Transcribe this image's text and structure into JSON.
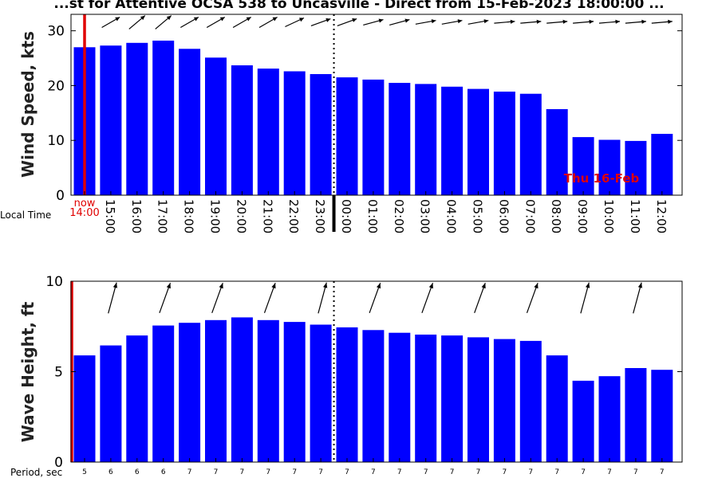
{
  "chart_data": [
    {
      "type": "bar",
      "title": "...st for Attentive OCSA 538 to Uncasville - Direct from 15-Feb-2023 18:00:00 ...",
      "ylabel": "Wind Speed, kts",
      "xlabel": "Local Time",
      "ylim": [
        0,
        33
      ],
      "yticks": [
        0,
        10,
        20,
        30
      ],
      "categories": [
        "14:00",
        "15:00",
        "16:00",
        "17:00",
        "18:00",
        "19:00",
        "20:00",
        "21:00",
        "22:00",
        "23:00",
        "00:00",
        "01:00",
        "02:00",
        "03:00",
        "04:00",
        "05:00",
        "06:00",
        "07:00",
        "08:00",
        "09:00",
        "10:00",
        "11:00",
        "12:00"
      ],
      "x_tick_labels": [
        "now\n14:00",
        "15:00",
        "16:00",
        "17:00",
        "18:00",
        "19:00",
        "20:00",
        "21:00",
        "22:00",
        "23:00",
        "00:00",
        "01:00",
        "02:00",
        "03:00",
        "04:00",
        "05:00",
        "06:00",
        "07:00",
        "08:00",
        "09:00",
        "10:00",
        "11:00",
        "12:00"
      ],
      "values": [
        27,
        27.3,
        27.8,
        28.2,
        26.7,
        25.1,
        23.7,
        23.1,
        22.6,
        22.1,
        21.5,
        21.1,
        20.5,
        20.3,
        19.8,
        19.4,
        18.9,
        18.5,
        15.7,
        10.6,
        10.1,
        9.9,
        11.2
      ],
      "wind_direction_arrows": [
        null,
        60,
        50,
        50,
        60,
        60,
        60,
        60,
        65,
        70,
        70,
        75,
        75,
        80,
        80,
        80,
        85,
        85,
        85,
        85,
        85,
        85,
        85
      ],
      "now_marker": "14:00",
      "day_marker": {
        "at": "00:00",
        "label": "Thu 16-Feb"
      },
      "grid": false
    },
    {
      "type": "bar",
      "ylabel": "Wave Height, ft",
      "xlabel": "Period, sec",
      "ylim": [
        0,
        10
      ],
      "yticks": [
        0,
        5,
        10
      ],
      "categories": [
        "14:00",
        "15:00",
        "16:00",
        "17:00",
        "18:00",
        "19:00",
        "20:00",
        "21:00",
        "22:00",
        "23:00",
        "00:00",
        "01:00",
        "02:00",
        "03:00",
        "04:00",
        "05:00",
        "06:00",
        "07:00",
        "08:00",
        "09:00",
        "10:00",
        "11:00",
        "12:00"
      ],
      "values": [
        5.9,
        6.45,
        7.0,
        7.55,
        7.7,
        7.85,
        8.0,
        7.85,
        7.75,
        7.6,
        7.45,
        7.3,
        7.15,
        7.05,
        7.0,
        6.9,
        6.8,
        6.7,
        5.9,
        4.5,
        4.75,
        5.2,
        5.1
      ],
      "periods": [
        "5",
        "6",
        "6",
        "6",
        "7",
        "7",
        "7",
        "7",
        "7",
        "7",
        "7",
        "7",
        "7",
        "7",
        "7",
        "7",
        "7",
        "7",
        "7",
        "7",
        "7",
        "7",
        "7"
      ],
      "wave_direction_arrows": [
        null,
        15,
        null,
        20,
        null,
        20,
        null,
        20,
        null,
        15,
        null,
        20,
        null,
        20,
        null,
        20,
        null,
        20,
        null,
        15,
        null,
        15,
        null
      ],
      "now_marker": "14:00",
      "grid": false
    }
  ],
  "colors": {
    "bar": "#0000ff",
    "now": "#e00000",
    "axis": "#000000"
  }
}
